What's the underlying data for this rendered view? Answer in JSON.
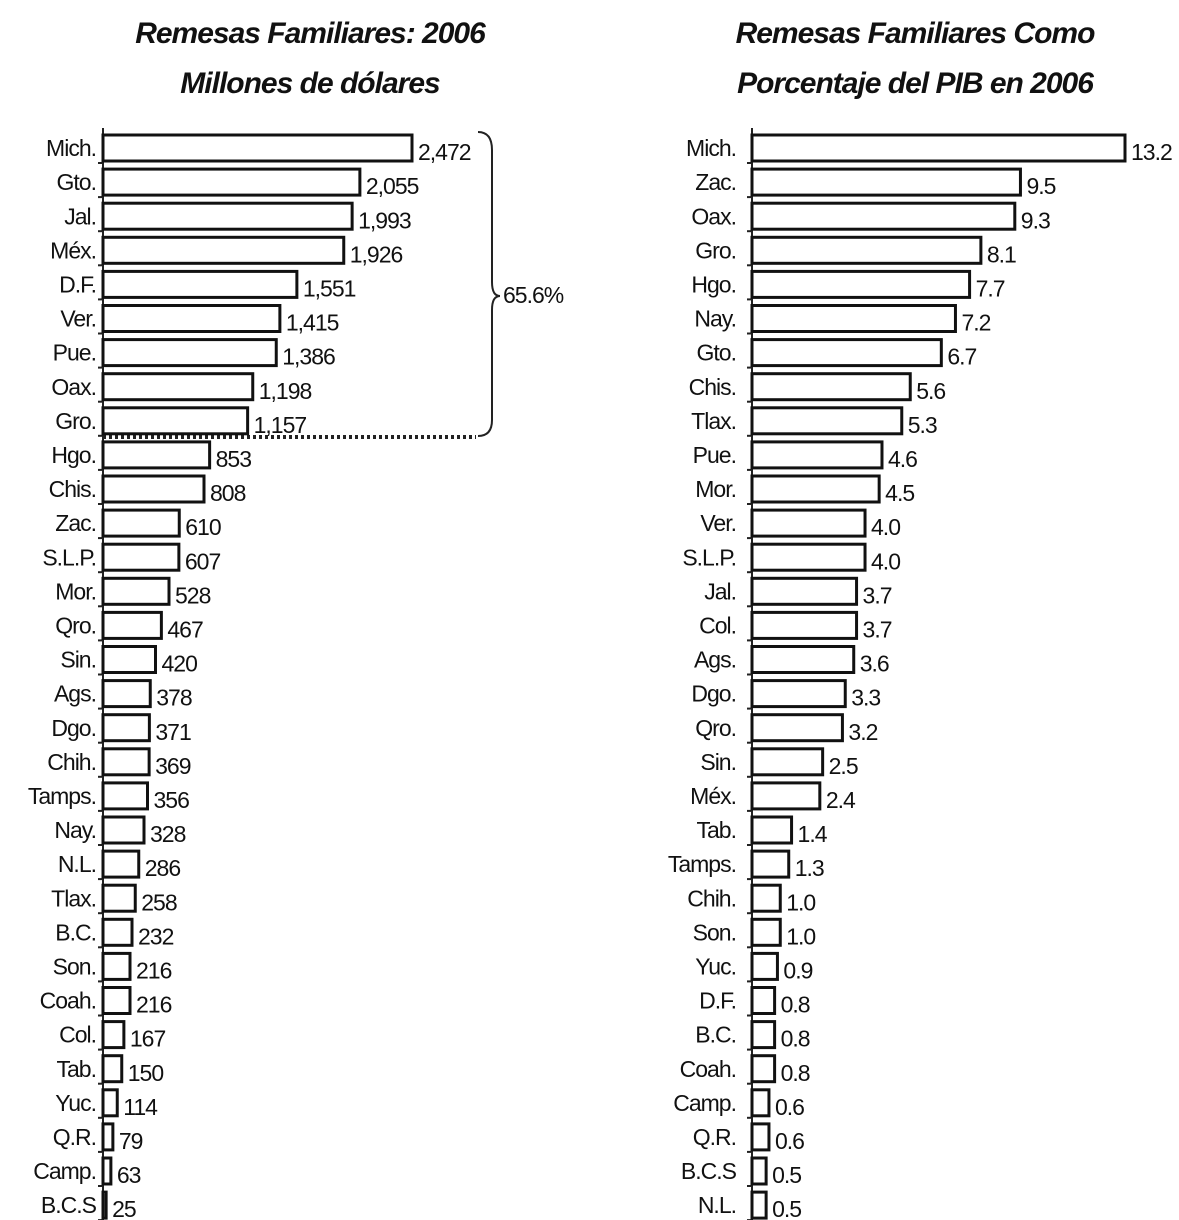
{
  "chart_data": [
    {
      "type": "bar",
      "orientation": "horizontal",
      "title": "Remesas Familiares: 2006",
      "subtitle": "Millones de dólares",
      "categories": [
        "Mich.",
        "Gto.",
        "Jal.",
        "Méx.",
        "D.F.",
        "Ver.",
        "Pue.",
        "Oax.",
        "Gro.",
        "Hgo.",
        "Chis.",
        "Zac.",
        "S.L.P.",
        "Mor.",
        "Qro.",
        "Sin.",
        "Ags.",
        "Dgo.",
        "Chih.",
        "Tamps.",
        "Nay.",
        "N.L.",
        "Tlax.",
        "B.C.",
        "Son.",
        "Coah.",
        "Col.",
        "Tab.",
        "Yuc.",
        "Q.R.",
        "Camp.",
        "B.C.S"
      ],
      "values": [
        2472,
        2055,
        1993,
        1926,
        1551,
        1415,
        1386,
        1198,
        1157,
        853,
        808,
        610,
        607,
        528,
        467,
        420,
        378,
        371,
        369,
        356,
        328,
        286,
        258,
        232,
        216,
        216,
        167,
        150,
        114,
        79,
        63,
        25
      ],
      "value_labels": [
        "2,472",
        "2,055",
        "1,993",
        "1,926",
        "1,551",
        "1,415",
        "1,386",
        "1,198",
        "1,157",
        "853",
        "808",
        "610",
        "607",
        "528",
        "467",
        "420",
        "378",
        "371",
        "369",
        "356",
        "328",
        "286",
        "258",
        "232",
        "216",
        "216",
        "167",
        "150",
        "114",
        "79",
        "63",
        "25"
      ],
      "annotation": "65.6%",
      "color": "#ffffff"
    },
    {
      "type": "bar",
      "orientation": "horizontal",
      "title": "Remesas Familiares Como",
      "subtitle": "Porcentaje del PIB en 2006",
      "categories": [
        "Mich.",
        "Zac.",
        "Oax.",
        "Gro.",
        "Hgo.",
        "Nay.",
        "Gto.",
        "Chis.",
        "Tlax.",
        "Pue.",
        "Mor.",
        "Ver.",
        "S.L.P.",
        "Jal.",
        "Col.",
        "Ags.",
        "Dgo.",
        "Qro.",
        "Sin.",
        "Méx.",
        "Tab.",
        "Tamps.",
        "Chih.",
        "Son.",
        "Yuc.",
        "D.F.",
        "B.C.",
        "Coah.",
        "Camp.",
        "Q.R.",
        "B.C.S",
        "N.L."
      ],
      "values": [
        13.2,
        9.5,
        9.3,
        8.1,
        7.7,
        7.2,
        6.7,
        5.6,
        5.3,
        4.6,
        4.5,
        4,
        4,
        3.7,
        3.7,
        3.6,
        3.3,
        3.2,
        2.5,
        2.4,
        1.4,
        1.3,
        1,
        1,
        0.9,
        0.8,
        0.8,
        0.8,
        0.6,
        0.6,
        0.5,
        0.5
      ],
      "value_labels": [
        "13.2",
        "9.5",
        "9.3",
        "8.1",
        "7.7",
        "7.2",
        "6.7",
        "5.6",
        "5.3",
        "4.6",
        "4.5",
        "4.0",
        "4.0",
        "3.7",
        "3.7",
        "3.6",
        "3.3",
        "3.2",
        "2.5",
        "2.4",
        "1.4",
        "1.3",
        "1.0",
        "1.0",
        "0.9",
        "0.8",
        "0.8",
        "0.8",
        "0.6",
        "0.6",
        "0.5",
        "0.5"
      ],
      "color": "#ffffff"
    }
  ]
}
